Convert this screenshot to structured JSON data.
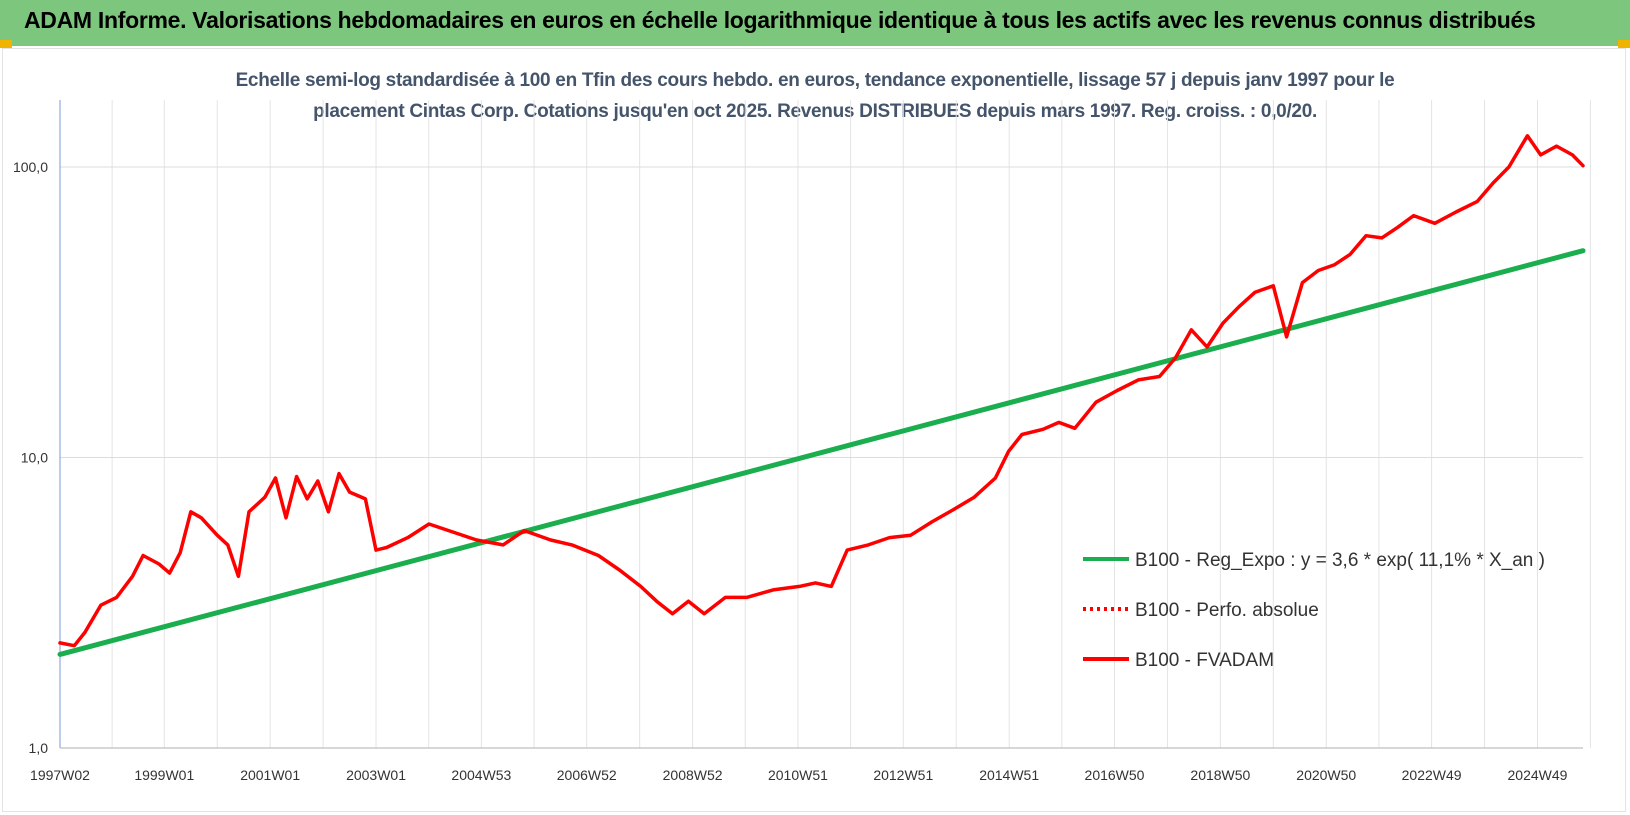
{
  "header": {
    "title": "ADAM Informe. Valorisations hebdomadaires en euros en échelle logarithmique identique à tous les actifs avec les revenus connus distribués"
  },
  "chart_data": {
    "type": "line",
    "title_line1": "Echelle semi-log standardisée à 100 en Tfin des cours hebdo. en euros, tendance exponentielle, lissage 57 j depuis janv 1997 pour le",
    "title_line2": "placement Cintas Corp. Cotations jusqu'en oct 2025. Revenus DISTRIBUES depuis mars 1997. Reg. croiss. : 0,0/20.",
    "y_scale": "log",
    "ylim": [
      1,
      170
    ],
    "xlim": [
      1997.03,
      2025.8
    ],
    "y_ticks": [
      {
        "value": 1,
        "label": "1,0"
      },
      {
        "value": 10,
        "label": "10,0"
      },
      {
        "value": 100,
        "label": "100,0"
      }
    ],
    "x_ticks": [
      {
        "value": 1997.03,
        "label": "1997W02"
      },
      {
        "value": 1999.0,
        "label": "1999W01"
      },
      {
        "value": 2001.0,
        "label": "2001W01"
      },
      {
        "value": 2003.0,
        "label": "2003W01"
      },
      {
        "value": 2004.99,
        "label": "2004W53"
      },
      {
        "value": 2006.98,
        "label": "2006W52"
      },
      {
        "value": 2008.98,
        "label": "2008W52"
      },
      {
        "value": 2010.97,
        "label": "2010W51"
      },
      {
        "value": 2012.96,
        "label": "2012W51"
      },
      {
        "value": 2014.96,
        "label": "2014W51"
      },
      {
        "value": 2016.95,
        "label": "2016W50"
      },
      {
        "value": 2018.95,
        "label": "2018W50"
      },
      {
        "value": 2020.95,
        "label": "2020W50"
      },
      {
        "value": 2022.94,
        "label": "2022W49"
      },
      {
        "value": 2024.94,
        "label": "2024W49"
      }
    ],
    "grid": true,
    "legend_position": "right",
    "series": [
      {
        "name": "B100 - Reg_Expo : y = 3,6 * exp( 11,1% *  X_an )",
        "color": "#1aae4f",
        "style": "solid",
        "x": [
          1997.03,
          2025.8
        ],
        "y": [
          2.1,
          51.5
        ]
      },
      {
        "name": "B100 - Perfo. absolue",
        "color": "#ff0000",
        "style": "dotted",
        "x": [],
        "y": []
      },
      {
        "name": "B100 - FVADAM",
        "color": "#ff0000",
        "style": "solid",
        "x": [
          1997.03,
          1997.3,
          1997.5,
          1997.8,
          1998.1,
          1998.4,
          1998.6,
          1998.9,
          1999.1,
          1999.3,
          1999.5,
          1999.7,
          2000.0,
          2000.2,
          2000.4,
          2000.6,
          2000.9,
          2001.1,
          2001.3,
          2001.5,
          2001.7,
          2001.9,
          2002.1,
          2002.3,
          2002.5,
          2002.8,
          2003.0,
          2003.2,
          2003.6,
          2004.0,
          2004.5,
          2004.9,
          2005.4,
          2005.8,
          2006.3,
          2006.7,
          2007.2,
          2007.6,
          2008.0,
          2008.3,
          2008.6,
          2008.9,
          2009.2,
          2009.6,
          2010.0,
          2010.5,
          2011.0,
          2011.3,
          2011.6,
          2011.9,
          2012.3,
          2012.7,
          2013.1,
          2013.5,
          2013.9,
          2014.3,
          2014.7,
          2014.95,
          2015.2,
          2015.6,
          2015.9,
          2016.2,
          2016.6,
          2017.0,
          2017.4,
          2017.8,
          2018.1,
          2018.4,
          2018.7,
          2019.0,
          2019.3,
          2019.6,
          2019.95,
          2020.2,
          2020.5,
          2020.8,
          2021.1,
          2021.4,
          2021.7,
          2022.0,
          2022.3,
          2022.6,
          2023.0,
          2023.4,
          2023.8,
          2024.1,
          2024.4,
          2024.75,
          2025.0,
          2025.3,
          2025.6,
          2025.8
        ],
        "y": [
          2.3,
          2.25,
          2.5,
          3.1,
          3.3,
          3.9,
          4.6,
          4.3,
          4.0,
          4.7,
          6.5,
          6.2,
          5.4,
          5.0,
          3.9,
          6.5,
          7.3,
          8.5,
          6.2,
          8.6,
          7.2,
          8.3,
          6.5,
          8.8,
          7.6,
          7.2,
          4.8,
          4.9,
          5.3,
          5.9,
          5.5,
          5.2,
          5.0,
          5.6,
          5.2,
          5.0,
          4.6,
          4.1,
          3.6,
          3.2,
          2.9,
          3.2,
          2.9,
          3.3,
          3.3,
          3.5,
          3.6,
          3.7,
          3.6,
          4.8,
          5.0,
          5.3,
          5.4,
          6.0,
          6.6,
          7.3,
          8.5,
          10.5,
          12.0,
          12.5,
          13.2,
          12.6,
          15.5,
          17.0,
          18.5,
          19.0,
          22.0,
          27.5,
          24.0,
          29.0,
          33.0,
          37.0,
          39.0,
          26.0,
          40.0,
          44.0,
          46.0,
          50.0,
          58.0,
          57.0,
          62.0,
          68.0,
          64.0,
          70.0,
          76.0,
          88.0,
          100.0,
          128.0,
          110.0,
          118.0,
          110.0,
          101.0
        ]
      }
    ]
  }
}
